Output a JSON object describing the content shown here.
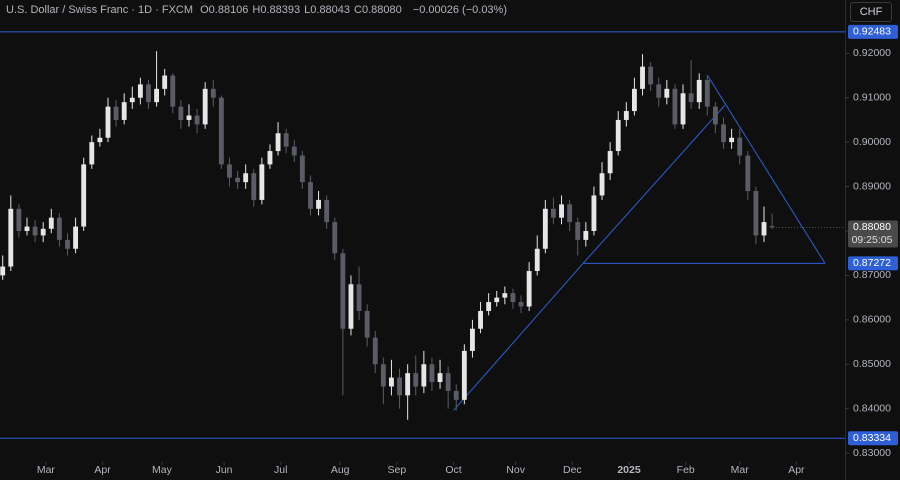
{
  "chart_data": {
    "type": "candlestick",
    "title": "U.S. Dollar / Swiss Franc · 1D · FXCM",
    "ohlc": [
      {
        "label": "O",
        "value": "0.88106"
      },
      {
        "label": "H",
        "value": "0.88393"
      },
      {
        "label": "L",
        "value": "0.88043"
      },
      {
        "label": "C",
        "value": "0.88080"
      }
    ],
    "change": "−0.00026 (−0.03%)",
    "currency": "CHF",
    "up_color": "#e6e6e6",
    "down_color": "#5a5d66",
    "line_color": "#2f5fd6",
    "x": [
      0,
      3,
      6,
      9,
      12,
      15,
      18,
      21,
      24,
      27,
      30,
      33,
      36,
      39,
      42,
      45,
      48,
      51,
      54,
      57,
      60,
      63,
      66,
      69,
      72,
      75,
      78,
      81,
      84,
      87,
      90,
      93,
      96,
      99,
      102,
      105,
      108,
      111,
      114,
      117,
      120,
      123,
      126,
      129,
      132,
      135,
      138,
      141,
      144,
      147,
      150,
      153,
      156,
      159,
      162,
      165,
      168,
      171,
      174,
      177,
      180,
      183,
      186,
      189,
      192,
      195,
      198,
      201,
      204,
      207,
      210,
      213,
      216,
      219,
      222,
      225,
      228,
      231,
      234,
      237,
      240,
      243,
      246,
      249,
      252,
      255,
      258,
      261,
      264,
      267,
      270,
      273,
      276,
      279,
      282,
      285
    ],
    "open": [
      0.87,
      0.872,
      0.885,
      0.88,
      0.881,
      0.879,
      0.8805,
      0.883,
      0.878,
      0.876,
      0.881,
      0.895,
      0.9,
      0.901,
      0.908,
      0.905,
      0.909,
      0.91,
      0.913,
      0.909,
      0.912,
      0.915,
      0.908,
      0.905,
      0.906,
      0.904,
      0.912,
      0.91,
      0.895,
      0.892,
      0.891,
      0.893,
      0.887,
      0.895,
      0.898,
      0.902,
      0.899,
      0.897,
      0.891,
      0.885,
      0.887,
      0.882,
      0.875,
      0.858,
      0.868,
      0.862,
      0.856,
      0.85,
      0.845,
      0.847,
      0.843,
      0.848,
      0.845,
      0.85,
      0.846,
      0.848,
      0.844,
      0.842,
      0.853,
      0.858,
      0.862,
      0.864,
      0.865,
      0.866,
      0.864,
      0.863,
      0.871,
      0.876,
      0.885,
      0.883,
      0.886,
      0.882,
      0.878,
      0.88,
      0.888,
      0.893,
      0.898,
      0.905,
      0.907,
      0.912,
      0.917,
      0.913,
      0.91,
      0.912,
      0.904,
      0.911,
      0.909,
      0.914,
      0.908,
      0.904,
      0.9,
      0.901,
      0.897,
      0.889,
      0.879,
      0.8811
    ],
    "high": [
      0.8745,
      0.888,
      0.886,
      0.883,
      0.8825,
      0.882,
      0.885,
      0.884,
      0.8795,
      0.883,
      0.8965,
      0.9015,
      0.903,
      0.91,
      0.9095,
      0.911,
      0.9125,
      0.9145,
      0.914,
      0.9205,
      0.9165,
      0.9155,
      0.9095,
      0.9085,
      0.9075,
      0.9135,
      0.914,
      0.9105,
      0.8965,
      0.8935,
      0.895,
      0.894,
      0.8965,
      0.8995,
      0.9045,
      0.903,
      0.9005,
      0.898,
      0.8925,
      0.889,
      0.888,
      0.883,
      0.876,
      0.87,
      0.872,
      0.8635,
      0.8575,
      0.8515,
      0.851,
      0.849,
      0.85,
      0.852,
      0.853,
      0.8515,
      0.851,
      0.8495,
      0.8455,
      0.8545,
      0.86,
      0.864,
      0.866,
      0.8665,
      0.8675,
      0.867,
      0.8655,
      0.873,
      0.879,
      0.887,
      0.8875,
      0.888,
      0.887,
      0.883,
      0.882,
      0.89,
      0.8955,
      0.9,
      0.907,
      0.909,
      0.9145,
      0.9198,
      0.918,
      0.9145,
      0.914,
      0.913,
      0.913,
      0.9185,
      0.9155,
      0.915,
      0.909,
      0.9055,
      0.903,
      0.903,
      0.898,
      0.89,
      0.8855,
      0.8839
    ],
    "low": [
      0.869,
      0.871,
      0.8785,
      0.879,
      0.8775,
      0.8775,
      0.8795,
      0.8765,
      0.8745,
      0.875,
      0.88,
      0.894,
      0.899,
      0.9,
      0.9035,
      0.904,
      0.9075,
      0.9085,
      0.9075,
      0.908,
      0.9105,
      0.9065,
      0.903,
      0.9035,
      0.902,
      0.903,
      0.908,
      0.894,
      0.89,
      0.8895,
      0.8895,
      0.8855,
      0.886,
      0.894,
      0.897,
      0.8975,
      0.8955,
      0.8895,
      0.8835,
      0.8835,
      0.8805,
      0.8735,
      0.843,
      0.8565,
      0.86,
      0.854,
      0.848,
      0.841,
      0.843,
      0.84,
      0.8375,
      0.843,
      0.8435,
      0.844,
      0.8445,
      0.84,
      0.8396,
      0.841,
      0.8515,
      0.857,
      0.861,
      0.863,
      0.8635,
      0.8625,
      0.8615,
      0.862,
      0.87,
      0.875,
      0.8815,
      0.8815,
      0.88,
      0.8745,
      0.8765,
      0.879,
      0.887,
      0.8915,
      0.897,
      0.9035,
      0.906,
      0.9105,
      0.9115,
      0.908,
      0.9085,
      0.903,
      0.903,
      0.9075,
      0.9075,
      0.906,
      0.902,
      0.8985,
      0.8985,
      0.895,
      0.887,
      0.877,
      0.8775,
      0.8804
    ],
    "close": [
      0.872,
      0.885,
      0.88,
      0.881,
      0.879,
      0.8805,
      0.883,
      0.878,
      0.876,
      0.881,
      0.895,
      0.9,
      0.901,
      0.908,
      0.905,
      0.909,
      0.91,
      0.913,
      0.909,
      0.912,
      0.915,
      0.908,
      0.905,
      0.906,
      0.904,
      0.912,
      0.91,
      0.895,
      0.892,
      0.891,
      0.893,
      0.887,
      0.895,
      0.898,
      0.902,
      0.899,
      0.897,
      0.891,
      0.885,
      0.887,
      0.882,
      0.875,
      0.858,
      0.868,
      0.862,
      0.856,
      0.85,
      0.845,
      0.847,
      0.843,
      0.848,
      0.845,
      0.85,
      0.846,
      0.848,
      0.844,
      0.842,
      0.853,
      0.858,
      0.862,
      0.864,
      0.865,
      0.866,
      0.864,
      0.863,
      0.871,
      0.876,
      0.885,
      0.883,
      0.886,
      0.882,
      0.878,
      0.88,
      0.888,
      0.893,
      0.898,
      0.905,
      0.907,
      0.912,
      0.917,
      0.913,
      0.91,
      0.912,
      0.904,
      0.911,
      0.909,
      0.914,
      0.908,
      0.904,
      0.9,
      0.901,
      0.897,
      0.889,
      0.879,
      0.882,
      0.8808
    ],
    "xlim": [
      -1,
      312
    ],
    "ylim": [
      0.828,
      0.932
    ],
    "xticks": [
      {
        "value": 16,
        "label": "Mar"
      },
      {
        "value": 37,
        "label": "Apr"
      },
      {
        "value": 59,
        "label": "May"
      },
      {
        "value": 82,
        "label": "Jun"
      },
      {
        "value": 103,
        "label": "Jul"
      },
      {
        "value": 125,
        "label": "Aug"
      },
      {
        "value": 146,
        "label": "Sep"
      },
      {
        "value": 167,
        "label": "Oct"
      },
      {
        "value": 190,
        "label": "Nov"
      },
      {
        "value": 211,
        "label": "Dec"
      },
      {
        "value": 232,
        "label": "2025"
      },
      {
        "value": 253,
        "label": "Feb"
      },
      {
        "value": 273,
        "label": "Mar"
      },
      {
        "value": 294,
        "label": "Apr"
      }
    ],
    "yticks": [
      {
        "value": 0.83,
        "label": "0.83000"
      },
      {
        "value": 0.84,
        "label": "0.84000"
      },
      {
        "value": 0.85,
        "label": "0.85000"
      },
      {
        "value": 0.86,
        "label": "0.86000"
      },
      {
        "value": 0.87,
        "label": "0.87000"
      },
      {
        "value": 0.88,
        "label": "0.88000"
      },
      {
        "value": 0.89,
        "label": "0.89000"
      },
      {
        "value": 0.9,
        "label": "0.90000"
      },
      {
        "value": 0.91,
        "label": "0.91000"
      },
      {
        "value": 0.92,
        "label": "0.92000"
      }
    ],
    "price_levels": [
      0.92483,
      0.83334
    ],
    "trendlines": [
      {
        "x": [
          167,
          215
        ],
        "y": [
          0.8396,
          0.87272
        ]
      },
      {
        "x": [
          215,
          267.5
        ],
        "y": [
          0.87272,
          0.9083
        ]
      },
      {
        "x": [
          261,
          304.6
        ],
        "y": [
          0.9151,
          0.87272
        ]
      },
      {
        "x": [
          215,
          304.6
        ],
        "y": [
          0.87272,
          0.87272
        ]
      }
    ],
    "last_price": {
      "value": 0.8808,
      "label": "0.88080"
    },
    "countdown": "09:25:05"
  }
}
